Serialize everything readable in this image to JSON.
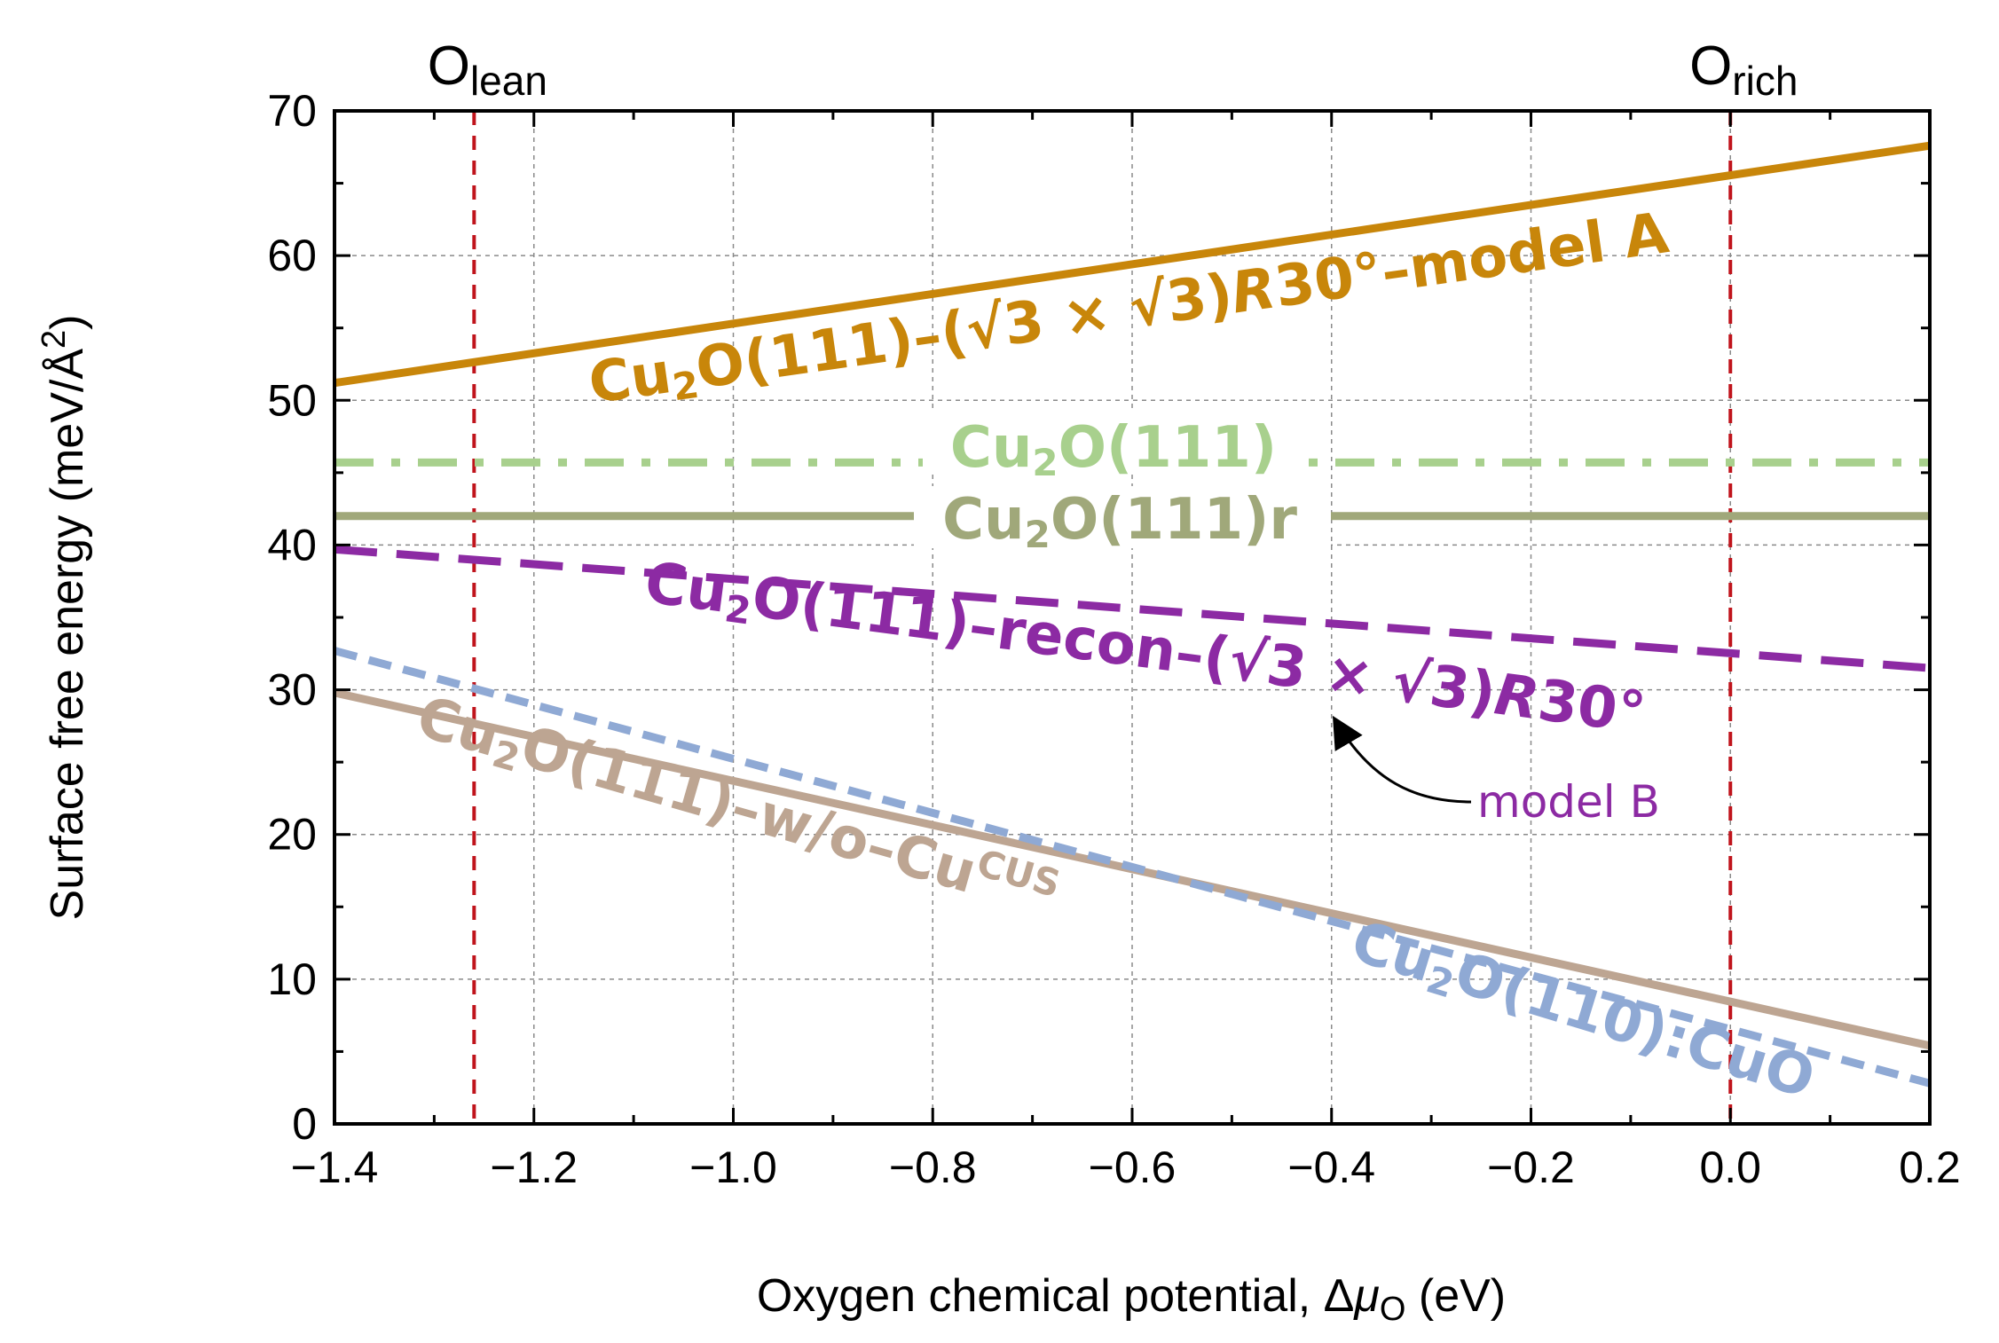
{
  "chart_data": {
    "type": "line",
    "xlabel_main": "Oxygen chemical potential, Δ",
    "xlabel_symbol": "μ",
    "xlabel_sub": "O",
    "xlabel_unit": " (eV)",
    "ylabel_main": "Surface free energy (meV/Å",
    "ylabel_sup": "2",
    "ylabel_end": ")",
    "xlim": [
      -1.4,
      0.2
    ],
    "ylim": [
      0,
      70
    ],
    "xticks": [
      -1.4,
      -1.2,
      -1.0,
      -0.8,
      -0.6,
      -0.4,
      -0.2,
      0.0,
      0.2
    ],
    "xtick_labels": [
      "−1.4",
      "−1.2",
      "−1.0",
      "−0.8",
      "−0.6",
      "−0.4",
      "−0.2",
      "0.0",
      "0.2"
    ],
    "yticks": [
      0,
      10,
      20,
      30,
      40,
      50,
      60,
      70
    ],
    "ytick_labels": [
      "0",
      "10",
      "20",
      "30",
      "40",
      "50",
      "60",
      "70"
    ],
    "grid": true,
    "vlines": [
      {
        "name": "O-lean",
        "x": -1.26,
        "label_main": "O",
        "label_sub": "lean",
        "color": "#c0141c"
      },
      {
        "name": "O-rich",
        "x": 0.0,
        "label_main": "O",
        "label_sub": "rich",
        "color": "#c0141c"
      }
    ],
    "series": [
      {
        "id": "model-a",
        "color": "#c8860a",
        "style": "solid",
        "x": [
          -1.4,
          0.2
        ],
        "y": [
          51.2,
          67.6
        ],
        "label_pre": "Cu",
        "label_sub": "2",
        "label_post": "O(111)–(√3 × √3)",
        "label_italic": "R",
        "label_end": "30°–model A"
      },
      {
        "id": "cu2o-111",
        "color": "#a8d08d",
        "style": "dashdot",
        "x": [
          -1.4,
          0.2
        ],
        "y": [
          45.7,
          45.7
        ],
        "label_pre": "Cu",
        "label_sub": "2",
        "label_post": "O(111)"
      },
      {
        "id": "cu2o-111r",
        "color": "#a0a87a",
        "style": "solid",
        "x": [
          -1.4,
          0.2
        ],
        "y": [
          42.0,
          42.0
        ],
        "label_pre": "Cu",
        "label_sub": "2",
        "label_post": "O(111)r"
      },
      {
        "id": "recon",
        "color": "#8c2aa3",
        "style": "dashed",
        "x": [
          -1.4,
          0.2
        ],
        "y": [
          39.7,
          31.5
        ],
        "label_pre": "Cu",
        "label_sub": "2",
        "label_post": "O(111)–recon–(√3 × √3)",
        "label_italic": "R",
        "label_end": "30°"
      },
      {
        "id": "wo-cu",
        "color": "#bda592",
        "style": "solid",
        "x": [
          -1.4,
          0.2
        ],
        "y": [
          29.8,
          5.4
        ],
        "label_pre": "Cu",
        "label_sub": "2",
        "label_post": "O(111)–w/o–Cu",
        "label_sup": "CUS"
      },
      {
        "id": "cu2o-110",
        "color": "#8fa9d4",
        "style": "dashed-short",
        "x": [
          -1.4,
          0.2
        ],
        "y": [
          32.7,
          2.8
        ],
        "label_pre": "Cu",
        "label_sub": "2",
        "label_post": "O(110):CuO"
      }
    ],
    "annotation": {
      "text": "model B",
      "color": "#8c2aa3",
      "target_series": "recon"
    }
  }
}
